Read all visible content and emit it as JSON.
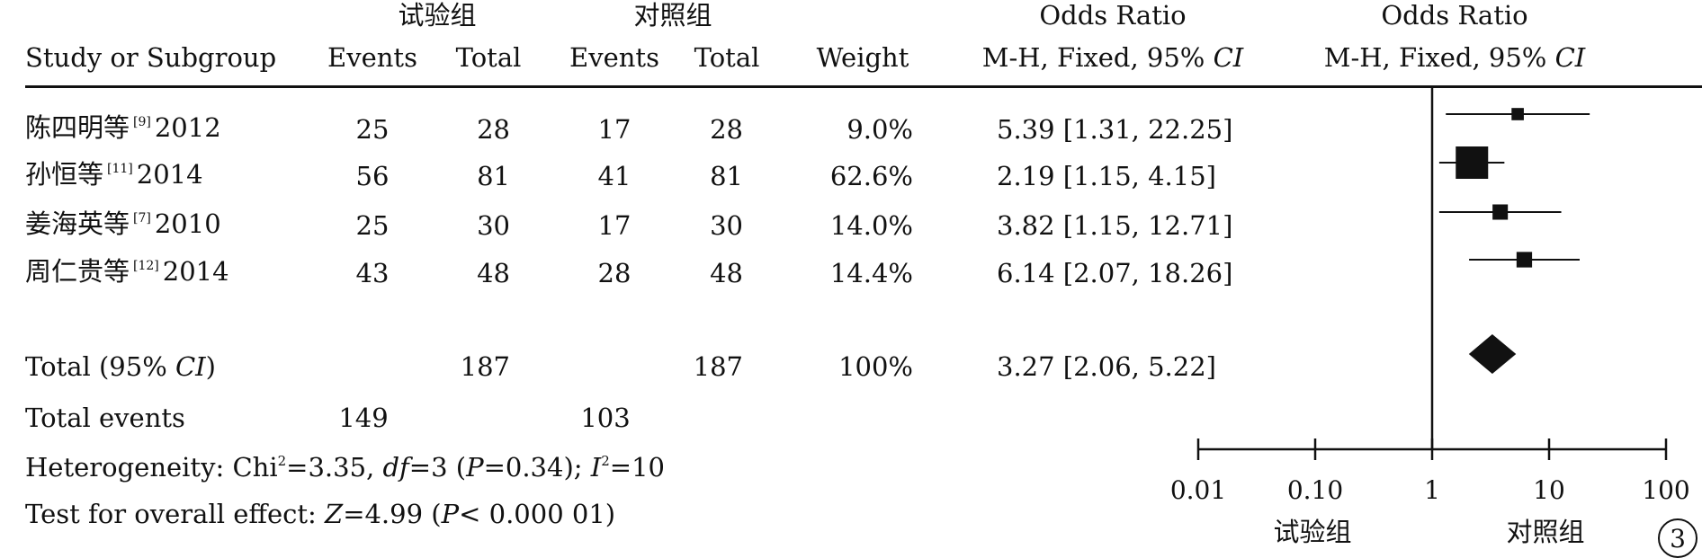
{
  "header": {
    "exp_group": "试验组",
    "ctrl_group": "对照组",
    "or_title_1": "Odds Ratio",
    "or_title_2": "Odds Ratio",
    "study_col": "Study or Subgroup",
    "events_1": "Events",
    "total_1": "Total",
    "events_2": "Events",
    "total_2": "Total",
    "weight": "Weight",
    "mh_1": "M-H, Fixed, 95% ",
    "ci_1": "CI",
    "mh_2": "M-H, Fixed, 95% ",
    "ci_2": "CI"
  },
  "studies": [
    {
      "name": "陈四明等",
      "ref": "[9]",
      "year": "2012",
      "e1": "25",
      "t1": "28",
      "e2": "17",
      "t2": "28",
      "weight": "9.0%",
      "or_text": "5.39 [1.31, 22.25]"
    },
    {
      "name": "孙恒等",
      "ref": "[11]",
      "year": "2014",
      "e1": "56",
      "t1": "81",
      "e2": "41",
      "t2": "81",
      "weight": "62.6%",
      "or_text": "2.19 [1.15, 4.15]"
    },
    {
      "name": "姜海英等",
      "ref": "[7]",
      "year": "2010",
      "e1": "25",
      "t1": "30",
      "e2": "17",
      "t2": "30",
      "weight": "14.0%",
      "or_text": "3.82 [1.15, 12.71]"
    },
    {
      "name": "周仁贵等",
      "ref": "[12]",
      "year": "2014",
      "e1": "43",
      "t1": "48",
      "e2": "28",
      "t2": "48",
      "weight": "14.4%",
      "or_text": "6.14 [2.07, 18.26]"
    }
  ],
  "total": {
    "label_pre": "Total (95% ",
    "label_ci": "CI",
    "label_post": ")",
    "t1": "187",
    "t2": "187",
    "weight": "100%",
    "or_text": "3.27 [2.06, 5.22]"
  },
  "total_events": {
    "label": "Total events",
    "e1": "149",
    "e2": "103"
  },
  "heterogeneity": {
    "prefix": "Heterogeneity: Chi",
    "chi_sup": "2",
    "chi_val": "=3.35, ",
    "df_label": "df",
    "df_val": "=3 (",
    "p_label": "P",
    "p_val": "=0.34); ",
    "i_label": "I",
    "i_sup": "2",
    "i_val": "=10"
  },
  "overall_effect": {
    "prefix": "Test for overall effect: ",
    "z_label": "Z",
    "z_val": "=4.99 (",
    "p_label": "P",
    "p_val": "< 0.000 01)"
  },
  "axis_labels": {
    "favours_left": "试验组",
    "favours_right": "对照组"
  },
  "figure_number": "3",
  "chart_data": {
    "type": "forest",
    "x_scale": "log",
    "xlim": [
      0.01,
      100
    ],
    "ticks": [
      0.01,
      0.1,
      1,
      10,
      100
    ],
    "tick_labels": [
      "0.01",
      "0.10",
      "1",
      "10",
      "100"
    ],
    "reference_line": 1,
    "studies": [
      {
        "or": 5.39,
        "lower": 1.31,
        "upper": 22.25,
        "weight": 9.0
      },
      {
        "or": 2.19,
        "lower": 1.15,
        "upper": 4.15,
        "weight": 62.6
      },
      {
        "or": 3.82,
        "lower": 1.15,
        "upper": 12.71,
        "weight": 14.0
      },
      {
        "or": 6.14,
        "lower": 2.07,
        "upper": 18.26,
        "weight": 14.4
      }
    ],
    "pooled": {
      "or": 3.27,
      "lower": 2.06,
      "upper": 5.22
    }
  }
}
